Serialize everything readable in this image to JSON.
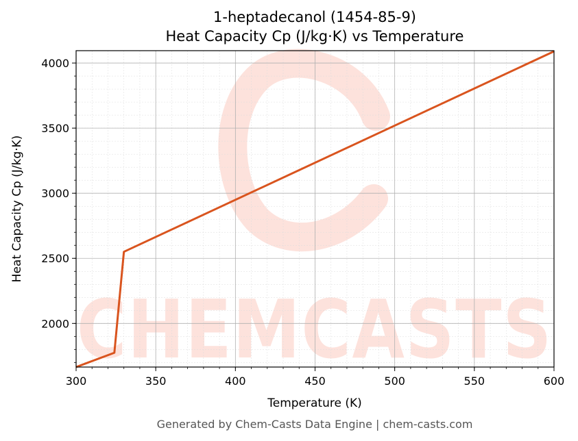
{
  "chart_data": {
    "type": "line",
    "title": "1-heptadecanol (1454-85-9)",
    "subtitle": "Heat Capacity Cp (J/kg·K) vs Temperature",
    "xlabel": "Temperature (K)",
    "ylabel": "Heat Capacity Cp (J/kg·K)",
    "xlim": [
      300,
      600
    ],
    "ylim": [
      1665,
      4095
    ],
    "xticks": [
      300,
      350,
      400,
      450,
      500,
      550,
      600
    ],
    "yticks": [
      2000,
      2500,
      3000,
      3500,
      4000
    ],
    "grid": true,
    "series": [
      {
        "x": [
          300,
          324,
          330,
          600
        ],
        "y": [
          1665,
          1775,
          2550,
          4090
        ]
      }
    ],
    "colors": {
      "line": "#d9541e",
      "grid": "#b0b0b0",
      "watermark": "#fde2dc"
    }
  },
  "watermark": {
    "text": "CHEMCASTS"
  },
  "footer": "Generated by Chem-Casts Data Engine | chem-casts.com"
}
